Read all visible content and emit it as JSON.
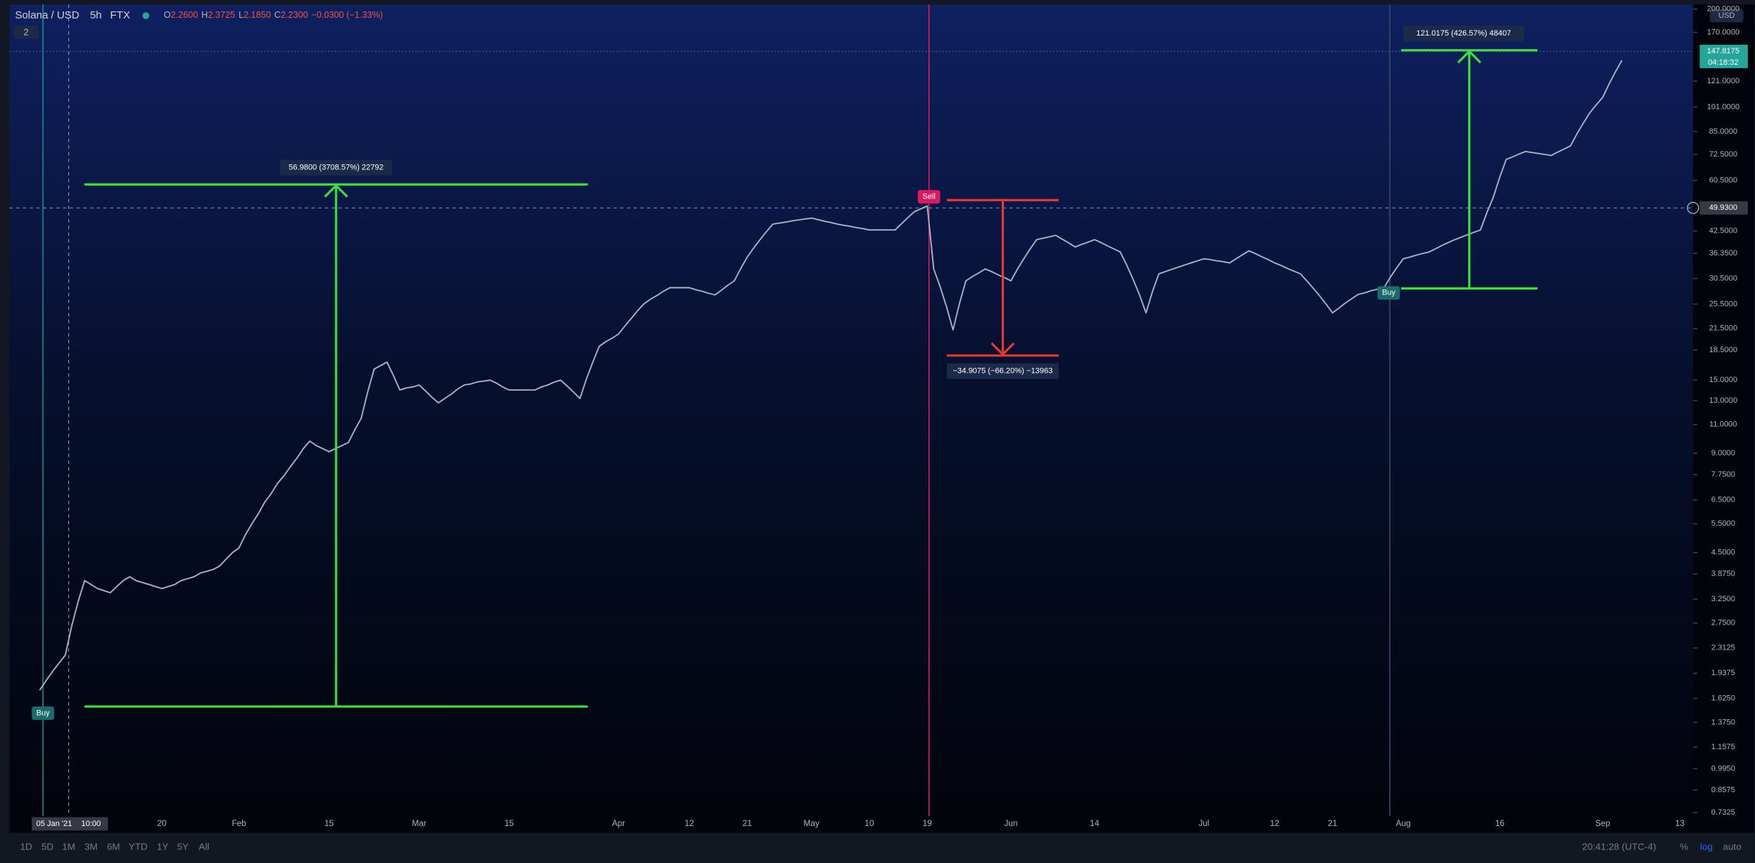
{
  "header": {
    "symbol": "Solana / USD",
    "interval": "5h",
    "exchange": "FTX",
    "ohlc": {
      "o_key": "O",
      "o": "2.2600",
      "h_key": "H",
      "h": "2.3725",
      "l_key": "L",
      "l": "2.1850",
      "c_key": "C",
      "c": "2.2300",
      "change": "−0.0300 (−1.33%)"
    },
    "indicators_count": "2",
    "currency": "USD"
  },
  "toolbar": {
    "ranges": [
      "1D",
      "5D",
      "1M",
      "3M",
      "6M",
      "YTD",
      "1Y",
      "5Y",
      "All"
    ],
    "clock": "20:41:28 (UTC-4)",
    "percent": "%",
    "log": "log",
    "auto": "auto"
  },
  "chart_data": {
    "type": "line",
    "log_scale": true,
    "grid": false,
    "color": "#a9b3c6",
    "ylim": [
      0.715,
      206.6
    ],
    "yticks": [
      {
        "value": 200,
        "label": "200.0000"
      },
      {
        "value": 170,
        "label": "170.0000"
      },
      {
        "value": 121,
        "label": "121.0000"
      },
      {
        "value": 101,
        "label": "101.0000"
      },
      {
        "value": 85,
        "label": "85.0000"
      },
      {
        "value": 72.5,
        "label": "72.5000"
      },
      {
        "value": 60.5,
        "label": "60.5000"
      },
      {
        "value": 42.5,
        "label": "42.5000"
      },
      {
        "value": 36.35,
        "label": "36.3500"
      },
      {
        "value": 30.5,
        "label": "30.5000"
      },
      {
        "value": 25.5,
        "label": "25.5000"
      },
      {
        "value": 21.5,
        "label": "21.5000"
      },
      {
        "value": 18.5,
        "label": "18.5000"
      },
      {
        "value": 15,
        "label": "15.0000"
      },
      {
        "value": 13,
        "label": "13.0000"
      },
      {
        "value": 11,
        "label": "11.0000"
      },
      {
        "value": 9,
        "label": "9.0000"
      },
      {
        "value": 7.75,
        "label": "7.7500"
      },
      {
        "value": 6.5,
        "label": "6.5000"
      },
      {
        "value": 5.5,
        "label": "5.5000"
      },
      {
        "value": 4.5,
        "label": "4.5000"
      },
      {
        "value": 3.875,
        "label": "3.8750"
      },
      {
        "value": 3.25,
        "label": "3.2500"
      },
      {
        "value": 2.75,
        "label": "2.7500"
      },
      {
        "value": 2.3125,
        "label": "2.3125"
      },
      {
        "value": 1.9375,
        "label": "1.9375"
      },
      {
        "value": 1.625,
        "label": "1.6250"
      },
      {
        "value": 1.375,
        "label": "1.3750"
      },
      {
        "value": 1.1575,
        "label": "1.1575"
      },
      {
        "value": 0.995,
        "label": "0.9950"
      },
      {
        "value": 0.8575,
        "label": "0.8575"
      },
      {
        "value": 0.7325,
        "label": "0.7325"
      }
    ],
    "categories": [
      null,
      null,
      null,
      null,
      null,
      null,
      null,
      null,
      null,
      null,
      null,
      null,
      null,
      null,
      null,
      null,
      null,
      null,
      null,
      "20",
      null,
      null,
      null,
      null,
      null,
      null,
      null,
      null,
      null,
      null,
      null,
      "Feb",
      null,
      null,
      null,
      null,
      null,
      null,
      null,
      null,
      null,
      null,
      null,
      null,
      null,
      "15",
      null,
      null,
      null,
      null,
      null,
      null,
      null,
      null,
      null,
      null,
      null,
      null,
      null,
      "Mar",
      null,
      null,
      null,
      null,
      null,
      null,
      null,
      null,
      null,
      null,
      null,
      null,
      null,
      "15",
      null,
      null,
      null,
      null,
      null,
      null,
      null,
      null,
      null,
      null,
      null,
      null,
      null,
      null,
      null,
      null,
      "Apr",
      null,
      null,
      null,
      null,
      null,
      null,
      null,
      null,
      null,
      null,
      "12",
      null,
      null,
      null,
      null,
      null,
      null,
      null,
      null,
      "21",
      null,
      null,
      null,
      null,
      null,
      null,
      null,
      null,
      null,
      "May",
      null,
      null,
      null,
      null,
      null,
      null,
      null,
      null,
      "10",
      null,
      null,
      null,
      null,
      null,
      null,
      null,
      null,
      "19",
      null,
      null,
      null,
      null,
      null,
      null,
      null,
      null,
      null,
      null,
      null,
      null,
      "Jun",
      null,
      null,
      null,
      null,
      null,
      null,
      null,
      null,
      null,
      null,
      null,
      null,
      "14",
      null,
      null,
      null,
      null,
      null,
      null,
      null,
      null,
      null,
      null,
      null,
      null,
      null,
      null,
      null,
      null,
      "Jul",
      null,
      null,
      null,
      null,
      null,
      null,
      null,
      null,
      null,
      null,
      "12",
      null,
      null,
      null,
      null,
      null,
      null,
      null,
      null,
      "21",
      null,
      null,
      null,
      null,
      null,
      null,
      null,
      null,
      null,
      null,
      "Aug",
      null,
      null,
      null,
      null,
      null,
      null,
      null,
      null,
      null,
      null,
      null,
      null,
      null,
      null,
      "16",
      null,
      null,
      null,
      null,
      null,
      null,
      null,
      null,
      null,
      null,
      null,
      null,
      null,
      null,
      null,
      "Sep",
      null,
      null,
      null,
      null,
      null,
      null,
      null,
      null,
      null,
      null,
      null,
      "13"
    ],
    "values": [
      1.72,
      1.84,
      1.96,
      2.08,
      2.2,
      2.7,
      3.2,
      3.7,
      3.6,
      3.5,
      3.45,
      3.4,
      3.55,
      3.7,
      3.8,
      3.7,
      3.65,
      3.6,
      3.55,
      3.5,
      3.55,
      3.6,
      3.7,
      3.75,
      3.8,
      3.9,
      3.95,
      4.0,
      4.1,
      4.3,
      4.5,
      4.65,
      5.1,
      5.5,
      5.9,
      6.4,
      6.8,
      7.3,
      7.7,
      8.2,
      8.7,
      9.3,
      9.8,
      9.5,
      9.3,
      9.1,
      9.3,
      9.5,
      9.7,
      10.6,
      11.5,
      13.8,
      16.2,
      16.6,
      17,
      15.5,
      14,
      14.2,
      14.3,
      14.5,
      13.9,
      13.3,
      12.8,
      13.2,
      13.6,
      14.1,
      14.5,
      14.6,
      14.8,
      14.9,
      15,
      14.7,
      14.3,
      14,
      14,
      14,
      14,
      14,
      14.3,
      14.5,
      14.8,
      15,
      14.4,
      13.8,
      13.2,
      15.1,
      17,
      19,
      19.6,
      20.1,
      20.7,
      21.9,
      23.1,
      24.4,
      25.6,
      26.4,
      27.1,
      27.9,
      28.6,
      28.6,
      28.6,
      28.6,
      28.2,
      27.9,
      27.5,
      27.2,
      28.1,
      29.1,
      30,
      32.7,
      35.4,
      37.7,
      40,
      42.3,
      44.6,
      44.9,
      45.2,
      45.6,
      45.9,
      46.2,
      46.5,
      46,
      45.5,
      45.1,
      44.6,
      44.2,
      43.9,
      43.5,
      43.2,
      42.8,
      42.8,
      42.8,
      42.8,
      42.8,
      44.7,
      46.7,
      48.6,
      49.6,
      50.6,
      32.6,
      28.8,
      25,
      21.3,
      25.6,
      30,
      30.9,
      31.7,
      32.6,
      32,
      31.3,
      30.7,
      30,
      32.5,
      35,
      37.5,
      40,
      40.4,
      40.8,
      41.2,
      40.1,
      39.1,
      38,
      38.7,
      39.3,
      40,
      39.2,
      38.3,
      37.5,
      36.7,
      33.5,
      30.3,
      27.2,
      24,
      27.8,
      31.5,
      32,
      32.5,
      33,
      33.5,
      34,
      34.5,
      35,
      34.8,
      34.5,
      34.3,
      34,
      35,
      36,
      37,
      36.3,
      35.5,
      34.8,
      34,
      33.4,
      32.7,
      32.1,
      31.5,
      30,
      28.5,
      27,
      25.5,
      24,
      24.8,
      25.7,
      26.5,
      27.3,
      27.6,
      28,
      28.3,
      28.6,
      30.8,
      32.9,
      35,
      35.4,
      35.9,
      36.3,
      36.7,
      37.5,
      38.4,
      39.2,
      40,
      40.7,
      41.4,
      42.1,
      42.8,
      48.3,
      53.8,
      61.9,
      70,
      71.3,
      72.7,
      74,
      73.5,
      73,
      72.5,
      72,
      73.7,
      75.3,
      77,
      83.7,
      90.3,
      97,
      102.5,
      108,
      118.7,
      129.3,
      140,
      null,
      null,
      null,
      null,
      null,
      null,
      null,
      null,
      null
    ],
    "annotations": [
      "56.9800 (3708.57%) 22792",
      "−34.9075 (−66.20%) −13963",
      "121.0175 (426.57%) 48407"
    ],
    "markers": [
      "Buy",
      "Sell",
      "Buy"
    ],
    "crosshair": {
      "date": "05 Jan '21",
      "time": "10:00",
      "price": "49.9300"
    },
    "last_price": {
      "price": "147.8175",
      "countdown": "04:18:32"
    }
  }
}
